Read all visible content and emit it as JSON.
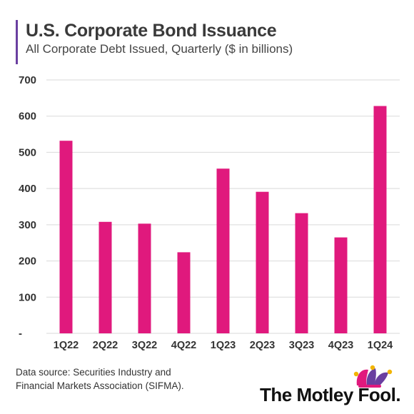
{
  "header": {
    "title": "U.S. Corporate Bond Issuance",
    "subtitle": "All Corporate Debt Issued, Quarterly ($ in billions)"
  },
  "footer": {
    "source_line1": "Data source: Securities Industry and",
    "source_line2": "Financial Markets Association (SIFMA).",
    "logo_text": "The Motley Fool."
  },
  "colors": {
    "bar": "#e0197d",
    "accent": "#6a3fa0",
    "grid": "#d9d9d9"
  },
  "chart_data": {
    "type": "bar",
    "categories": [
      "1Q22",
      "2Q22",
      "3Q22",
      "4Q22",
      "1Q23",
      "2Q23",
      "3Q23",
      "4Q23",
      "1Q24"
    ],
    "values": [
      532,
      308,
      303,
      224,
      455,
      391,
      332,
      265,
      628
    ],
    "ylim": [
      0,
      700
    ],
    "yticks": [
      0,
      100,
      200,
      300,
      400,
      500,
      600,
      700
    ],
    "ytick_labels": [
      "-",
      "100",
      "200",
      "300",
      "400",
      "500",
      "600",
      "700"
    ],
    "grid": "horizontal",
    "legend": "none"
  }
}
